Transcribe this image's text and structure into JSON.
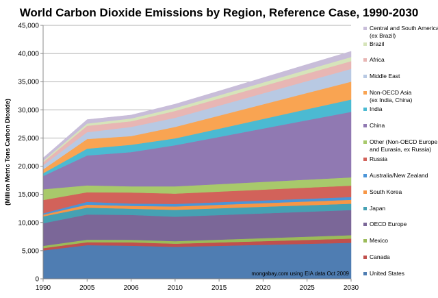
{
  "chart_data": {
    "type": "area",
    "stacked": true,
    "title": "World Carbon Dioxide Emissions by Region, Reference Case, 1990-2030",
    "xlabel": "",
    "ylabel": "(Million Metric Tons Carbon Dioxide)",
    "ylim": [
      0,
      45000
    ],
    "yticks": [
      0,
      5000,
      10000,
      15000,
      20000,
      25000,
      30000,
      35000,
      40000,
      45000
    ],
    "ytick_labels": [
      "0",
      "5,000",
      "10,000",
      "15,000",
      "20,000",
      "25,000",
      "30,000",
      "35,000",
      "40,000",
      "45,000"
    ],
    "grid": true,
    "legend_position": "right",
    "annotation": "mongabay.com using EIA data Oct 2009",
    "categories": [
      "1990",
      "2005",
      "2006",
      "2010",
      "2015",
      "2020",
      "2025",
      "2030"
    ],
    "series": [
      {
        "name": "United States",
        "color": "#4f7db2",
        "values": [
          5040,
          5975,
          5880,
          5680,
          5860,
          6040,
          6220,
          6400
        ]
      },
      {
        "name": "Canada",
        "color": "#c0504d",
        "values": [
          410,
          525,
          600,
          560,
          605,
          650,
          695,
          740
        ]
      },
      {
        "name": "Mexico",
        "color": "#9bbb59",
        "values": [
          400,
          450,
          450,
          450,
          490,
          530,
          570,
          610
        ]
      },
      {
        "name": "OECD Europe",
        "color": "#7b6798",
        "values": [
          4020,
          4470,
          4420,
          4340,
          4370,
          4400,
          4430,
          4460
        ]
      },
      {
        "name": "Japan",
        "color": "#45a1b3",
        "values": [
          1220,
          1220,
          1100,
          1220,
          1200,
          1175,
          1150,
          1130
        ]
      },
      {
        "name": "South Korea",
        "color": "#f79646",
        "values": [
          290,
          530,
          500,
          600,
          620,
          645,
          670,
          690
        ]
      },
      {
        "name": "Australia/New Zealand",
        "color": "#4b95d8",
        "values": [
          250,
          490,
          420,
          450,
          460,
          470,
          480,
          490
        ]
      },
      {
        "name": "Russia",
        "color": "#d2625a",
        "values": [
          2360,
          1710,
          1960,
          1830,
          1880,
          1930,
          1980,
          2030
        ]
      },
      {
        "name": "Other (Non-OECD Europe and Eurasia, ex Russia)",
        "color": "#a8c96b",
        "values": [
          1910,
          1220,
          1090,
          1290,
          1330,
          1375,
          1420,
          1460
        ]
      },
      {
        "name": "China",
        "color": "#9079b2",
        "values": [
          2350,
          5310,
          6080,
          7300,
          8380,
          9465,
          10550,
          11630
        ]
      },
      {
        "name": "India",
        "color": "#4bbad2",
        "values": [
          490,
          1210,
          1300,
          1220,
          1460,
          1705,
          1950,
          2190
        ]
      },
      {
        "name": "Non-OECD Asia (ex India, China)",
        "color": "#f9a452",
        "values": [
          690,
          1710,
          1540,
          2030,
          2315,
          2600,
          2885,
          3170
        ]
      },
      {
        "name": "Middle East",
        "color": "#b8c9e3",
        "values": [
          730,
          1210,
          1630,
          1620,
          1780,
          1945,
          2110,
          2270
        ]
      },
      {
        "name": "Africa",
        "color": "#e8b6b4",
        "values": [
          530,
          1140,
          1010,
          1220,
          1260,
          1300,
          1340,
          1380
        ]
      },
      {
        "name": "Brazil",
        "color": "#d6e4ba",
        "values": [
          250,
          400,
          490,
          520,
          570,
          625,
          680,
          730
        ]
      },
      {
        "name": "Central and South America (ex Brazil)",
        "color": "#c8bdd9",
        "values": [
          520,
          700,
          610,
          690,
          770,
          850,
          930,
          1010
        ]
      }
    ],
    "legend_entries": [
      [
        "Central and South America",
        "(ex Brazil)"
      ],
      [
        "Brazil"
      ],
      [
        "Africa"
      ],
      [
        "Middle East"
      ],
      [
        "Non-OECD Asia",
        "(ex India, China)"
      ],
      [
        "India"
      ],
      [
        "China"
      ],
      [
        "Other (Non-OECD Europe",
        "and Eurasia, ex Russia)"
      ],
      [
        "Russia"
      ],
      [
        "Australia/New Zealand"
      ],
      [
        "South Korea"
      ],
      [
        "Japan"
      ],
      [
        "OECD Europe"
      ],
      [
        "Mexico"
      ],
      [
        "Canada"
      ],
      [
        "United States"
      ]
    ]
  }
}
